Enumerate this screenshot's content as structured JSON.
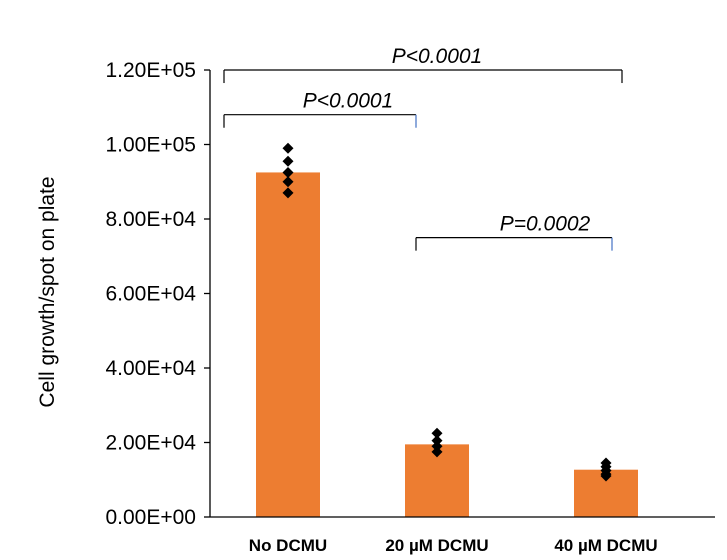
{
  "chart_data": {
    "type": "bar",
    "title": "",
    "xlabel": "",
    "ylabel": "Cell growth/spot on plate",
    "ylim": [
      0,
      120000
    ],
    "yticks": [
      0,
      20000,
      40000,
      60000,
      80000,
      100000,
      120000
    ],
    "ytick_labels": [
      "0.00E+00",
      "2.00E+04",
      "4.00E+04",
      "6.00E+04",
      "8.00E+04",
      "1.00E+05",
      "1.20E+05"
    ],
    "categories": [
      "No DCMU",
      "20 µM DCMU",
      "40 µM DCMU"
    ],
    "values": [
      92500,
      19500,
      12700
    ],
    "bar_color": "#ED7D31",
    "points": [
      [
        99000,
        95500,
        92500,
        90000,
        87000
      ],
      [
        22500,
        20500,
        19000,
        17500
      ],
      [
        14500,
        13500,
        12500,
        11500,
        11000
      ]
    ],
    "point_color": "#000000",
    "grid": false,
    "comparisons": [
      {
        "from": 0,
        "to": 2,
        "label": "P<0.0001",
        "level": 120000,
        "drop": 3500,
        "color_left": "#000000",
        "color_right": "#000000"
      },
      {
        "from": 0,
        "to": 1,
        "label": "P<0.0001",
        "level": 108000,
        "drop": 3500,
        "color_left": "#000000",
        "color_right": "#4472C4"
      },
      {
        "from": 1,
        "to": 2,
        "label": "P=0.0002",
        "level": 75000,
        "drop": 3500,
        "color_left": "#000000",
        "color_right": "#4472C4"
      }
    ]
  }
}
